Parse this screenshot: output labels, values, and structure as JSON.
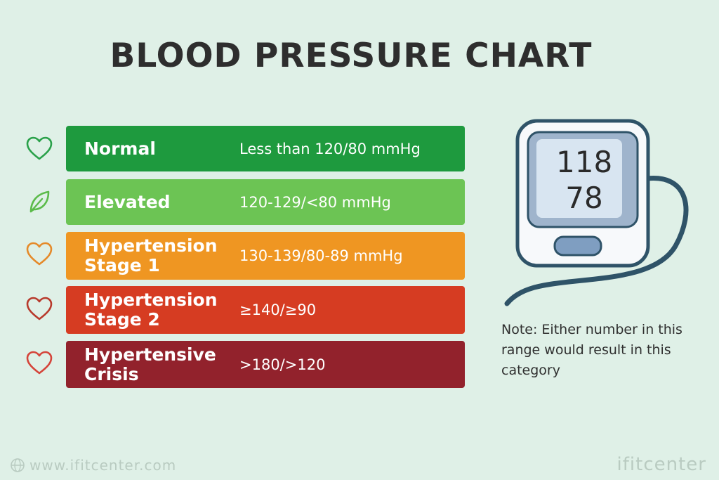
{
  "title": "BLOOD PRESSURE CHART",
  "categories": [
    {
      "name": "Normal",
      "range": "Less than 120/80 mmHg",
      "color": "#1e9a3e",
      "icon": "heart-icon",
      "icon_color": "#2aa14a"
    },
    {
      "name": "Elevated",
      "range": "120-129/<80 mmHg",
      "color": "#6cc454",
      "icon": "leaf-icon",
      "icon_color": "#5bbb4a"
    },
    {
      "name": "Hypertension\nStage 1",
      "range": "130-139/80-89 mmHg",
      "color": "#ef9622",
      "icon": "heart-icon",
      "icon_color": "#e58a2a"
    },
    {
      "name": "Hypertension\nStage 2",
      "range": "≥140/≥90",
      "color": "#d63c22",
      "icon": "heart-icon",
      "icon_color": "#b83a2c"
    },
    {
      "name": "Hypertensive\nCrisis",
      "range": ">180/>120",
      "color": "#92222c",
      "icon": "heart-icon",
      "icon_color": "#d5443a"
    }
  ],
  "monitor": {
    "systolic": "118",
    "diastolic": "78"
  },
  "note": "Note: Either number in this range would result in this category",
  "footer": {
    "url": "www.ifitcenter.com",
    "brand": "ifitcenter"
  }
}
